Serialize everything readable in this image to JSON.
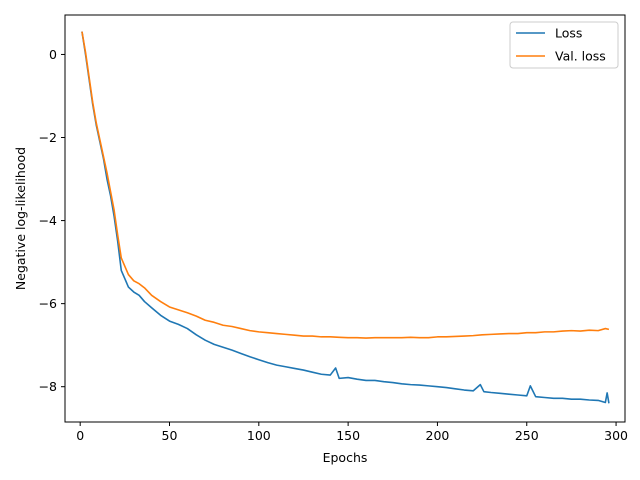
{
  "chart_data": {
    "type": "line",
    "title": "",
    "xlabel": "Epochs",
    "ylabel": "Negative log-likelihood",
    "xlim": [
      -8.5,
      305
    ],
    "ylim": [
      -8.85,
      0.95
    ],
    "xticks": [
      0,
      50,
      100,
      150,
      200,
      250,
      300
    ],
    "yticks": [
      0,
      -2,
      -4,
      -6,
      -8
    ],
    "xtick_labels": [
      "0",
      "50",
      "100",
      "150",
      "200",
      "250",
      "300"
    ],
    "ytick_labels": [
      "0",
      "−2",
      "−4",
      "−6",
      "−8"
    ],
    "grid": false,
    "legend_position": "top-right",
    "series": [
      {
        "name": "Loss",
        "color": "#1f77b4",
        "points": [
          [
            1,
            0.55
          ],
          [
            3,
            0.0
          ],
          [
            5,
            -0.6
          ],
          [
            7,
            -1.2
          ],
          [
            9,
            -1.7
          ],
          [
            11,
            -2.1
          ],
          [
            13,
            -2.5
          ],
          [
            15,
            -3.0
          ],
          [
            17,
            -3.4
          ],
          [
            19,
            -3.9
          ],
          [
            21,
            -4.5
          ],
          [
            23,
            -5.2
          ],
          [
            25,
            -5.4
          ],
          [
            27,
            -5.6
          ],
          [
            30,
            -5.72
          ],
          [
            33,
            -5.8
          ],
          [
            36,
            -5.95
          ],
          [
            40,
            -6.1
          ],
          [
            45,
            -6.28
          ],
          [
            50,
            -6.42
          ],
          [
            55,
            -6.5
          ],
          [
            60,
            -6.6
          ],
          [
            65,
            -6.75
          ],
          [
            70,
            -6.88
          ],
          [
            75,
            -6.98
          ],
          [
            80,
            -7.05
          ],
          [
            85,
            -7.12
          ],
          [
            90,
            -7.2
          ],
          [
            95,
            -7.28
          ],
          [
            100,
            -7.35
          ],
          [
            105,
            -7.42
          ],
          [
            110,
            -7.48
          ],
          [
            115,
            -7.52
          ],
          [
            120,
            -7.56
          ],
          [
            125,
            -7.6
          ],
          [
            130,
            -7.65
          ],
          [
            135,
            -7.7
          ],
          [
            140,
            -7.72
          ],
          [
            143,
            -7.55
          ],
          [
            145,
            -7.8
          ],
          [
            150,
            -7.78
          ],
          [
            155,
            -7.82
          ],
          [
            160,
            -7.85
          ],
          [
            165,
            -7.85
          ],
          [
            170,
            -7.88
          ],
          [
            175,
            -7.9
          ],
          [
            180,
            -7.93
          ],
          [
            185,
            -7.95
          ],
          [
            190,
            -7.96
          ],
          [
            195,
            -7.98
          ],
          [
            200,
            -8.0
          ],
          [
            205,
            -8.02
          ],
          [
            210,
            -8.05
          ],
          [
            215,
            -8.08
          ],
          [
            220,
            -8.1
          ],
          [
            224,
            -7.95
          ],
          [
            226,
            -8.12
          ],
          [
            230,
            -8.14
          ],
          [
            235,
            -8.16
          ],
          [
            240,
            -8.18
          ],
          [
            245,
            -8.2
          ],
          [
            250,
            -8.22
          ],
          [
            252,
            -7.98
          ],
          [
            255,
            -8.24
          ],
          [
            260,
            -8.26
          ],
          [
            265,
            -8.28
          ],
          [
            270,
            -8.28
          ],
          [
            275,
            -8.3
          ],
          [
            280,
            -8.3
          ],
          [
            285,
            -8.32
          ],
          [
            290,
            -8.33
          ],
          [
            294,
            -8.38
          ],
          [
            295,
            -8.15
          ],
          [
            296,
            -8.4
          ]
        ]
      },
      {
        "name": "Val. loss",
        "color": "#ff7f0e",
        "points": [
          [
            1,
            0.55
          ],
          [
            3,
            0.05
          ],
          [
            5,
            -0.55
          ],
          [
            7,
            -1.15
          ],
          [
            9,
            -1.65
          ],
          [
            11,
            -2.05
          ],
          [
            13,
            -2.45
          ],
          [
            15,
            -2.85
          ],
          [
            17,
            -3.3
          ],
          [
            19,
            -3.75
          ],
          [
            21,
            -4.35
          ],
          [
            23,
            -4.9
          ],
          [
            25,
            -5.1
          ],
          [
            27,
            -5.3
          ],
          [
            30,
            -5.45
          ],
          [
            33,
            -5.52
          ],
          [
            36,
            -5.62
          ],
          [
            40,
            -5.8
          ],
          [
            45,
            -5.95
          ],
          [
            50,
            -6.08
          ],
          [
            55,
            -6.15
          ],
          [
            60,
            -6.22
          ],
          [
            65,
            -6.3
          ],
          [
            70,
            -6.4
          ],
          [
            75,
            -6.45
          ],
          [
            80,
            -6.52
          ],
          [
            85,
            -6.55
          ],
          [
            90,
            -6.6
          ],
          [
            95,
            -6.65
          ],
          [
            100,
            -6.68
          ],
          [
            105,
            -6.7
          ],
          [
            110,
            -6.72
          ],
          [
            115,
            -6.74
          ],
          [
            120,
            -6.76
          ],
          [
            125,
            -6.78
          ],
          [
            130,
            -6.78
          ],
          [
            135,
            -6.8
          ],
          [
            140,
            -6.8
          ],
          [
            145,
            -6.81
          ],
          [
            150,
            -6.82
          ],
          [
            155,
            -6.82
          ],
          [
            160,
            -6.83
          ],
          [
            165,
            -6.82
          ],
          [
            170,
            -6.82
          ],
          [
            175,
            -6.82
          ],
          [
            180,
            -6.82
          ],
          [
            185,
            -6.81
          ],
          [
            190,
            -6.82
          ],
          [
            195,
            -6.82
          ],
          [
            200,
            -6.8
          ],
          [
            205,
            -6.8
          ],
          [
            210,
            -6.79
          ],
          [
            215,
            -6.78
          ],
          [
            220,
            -6.77
          ],
          [
            225,
            -6.75
          ],
          [
            230,
            -6.74
          ],
          [
            235,
            -6.73
          ],
          [
            240,
            -6.72
          ],
          [
            245,
            -6.72
          ],
          [
            250,
            -6.7
          ],
          [
            255,
            -6.7
          ],
          [
            260,
            -6.68
          ],
          [
            265,
            -6.68
          ],
          [
            270,
            -6.66
          ],
          [
            275,
            -6.65
          ],
          [
            280,
            -6.66
          ],
          [
            285,
            -6.64
          ],
          [
            290,
            -6.65
          ],
          [
            294,
            -6.6
          ],
          [
            296,
            -6.62
          ]
        ]
      }
    ]
  }
}
